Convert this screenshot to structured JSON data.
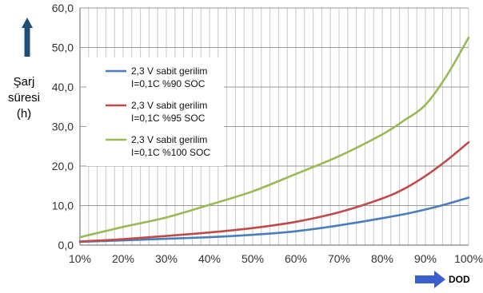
{
  "chart_data": {
    "type": "line",
    "ylabel_lines": [
      "Şarj",
      "süresi",
      "(h)"
    ],
    "x_axis_caption": "DOD",
    "x_ticks": [
      "10%",
      "20%",
      "30%",
      "40%",
      "50%",
      "60%",
      "70%",
      "80%",
      "90%",
      "100%"
    ],
    "y_ticks": [
      "0,0",
      "10,0",
      "20,0",
      "30,0",
      "40,0",
      "50,0",
      "60,0"
    ],
    "xlim": [
      10,
      100
    ],
    "ylim": [
      0,
      60
    ],
    "grid": true,
    "legend_position": "top-left",
    "x": [
      10,
      20,
      30,
      40,
      50,
      60,
      70,
      80,
      85,
      90,
      95,
      100
    ],
    "series": [
      {
        "name_lines": [
          "2,3 V sabit gerilim",
          "I=0,1C  %90 SOC"
        ],
        "color": "#4a7ebb",
        "values": [
          0.8,
          1.2,
          1.6,
          2.0,
          2.6,
          3.5,
          5.0,
          6.8,
          7.8,
          9.0,
          10.4,
          12.0
        ]
      },
      {
        "name_lines": [
          "2,3 V sabit gerilim",
          "I=0,1C  %95 SOC"
        ],
        "color": "#be4b48",
        "values": [
          0.9,
          1.5,
          2.3,
          3.2,
          4.3,
          5.9,
          8.3,
          11.8,
          14.2,
          17.5,
          21.5,
          26.0
        ]
      },
      {
        "name_lines": [
          "2,3 V sabit gerilim",
          "I=0,1C  %100 SOC"
        ],
        "color": "#98b954",
        "values": [
          2.0,
          4.6,
          7.0,
          10.2,
          13.6,
          18.0,
          22.5,
          28.0,
          31.5,
          35.5,
          43.0,
          52.5
        ]
      }
    ]
  },
  "colors": {
    "axis_arrow": "#1f4e79",
    "dod_arrow": "#3a5fcd",
    "grid": "#c8c8c8"
  }
}
